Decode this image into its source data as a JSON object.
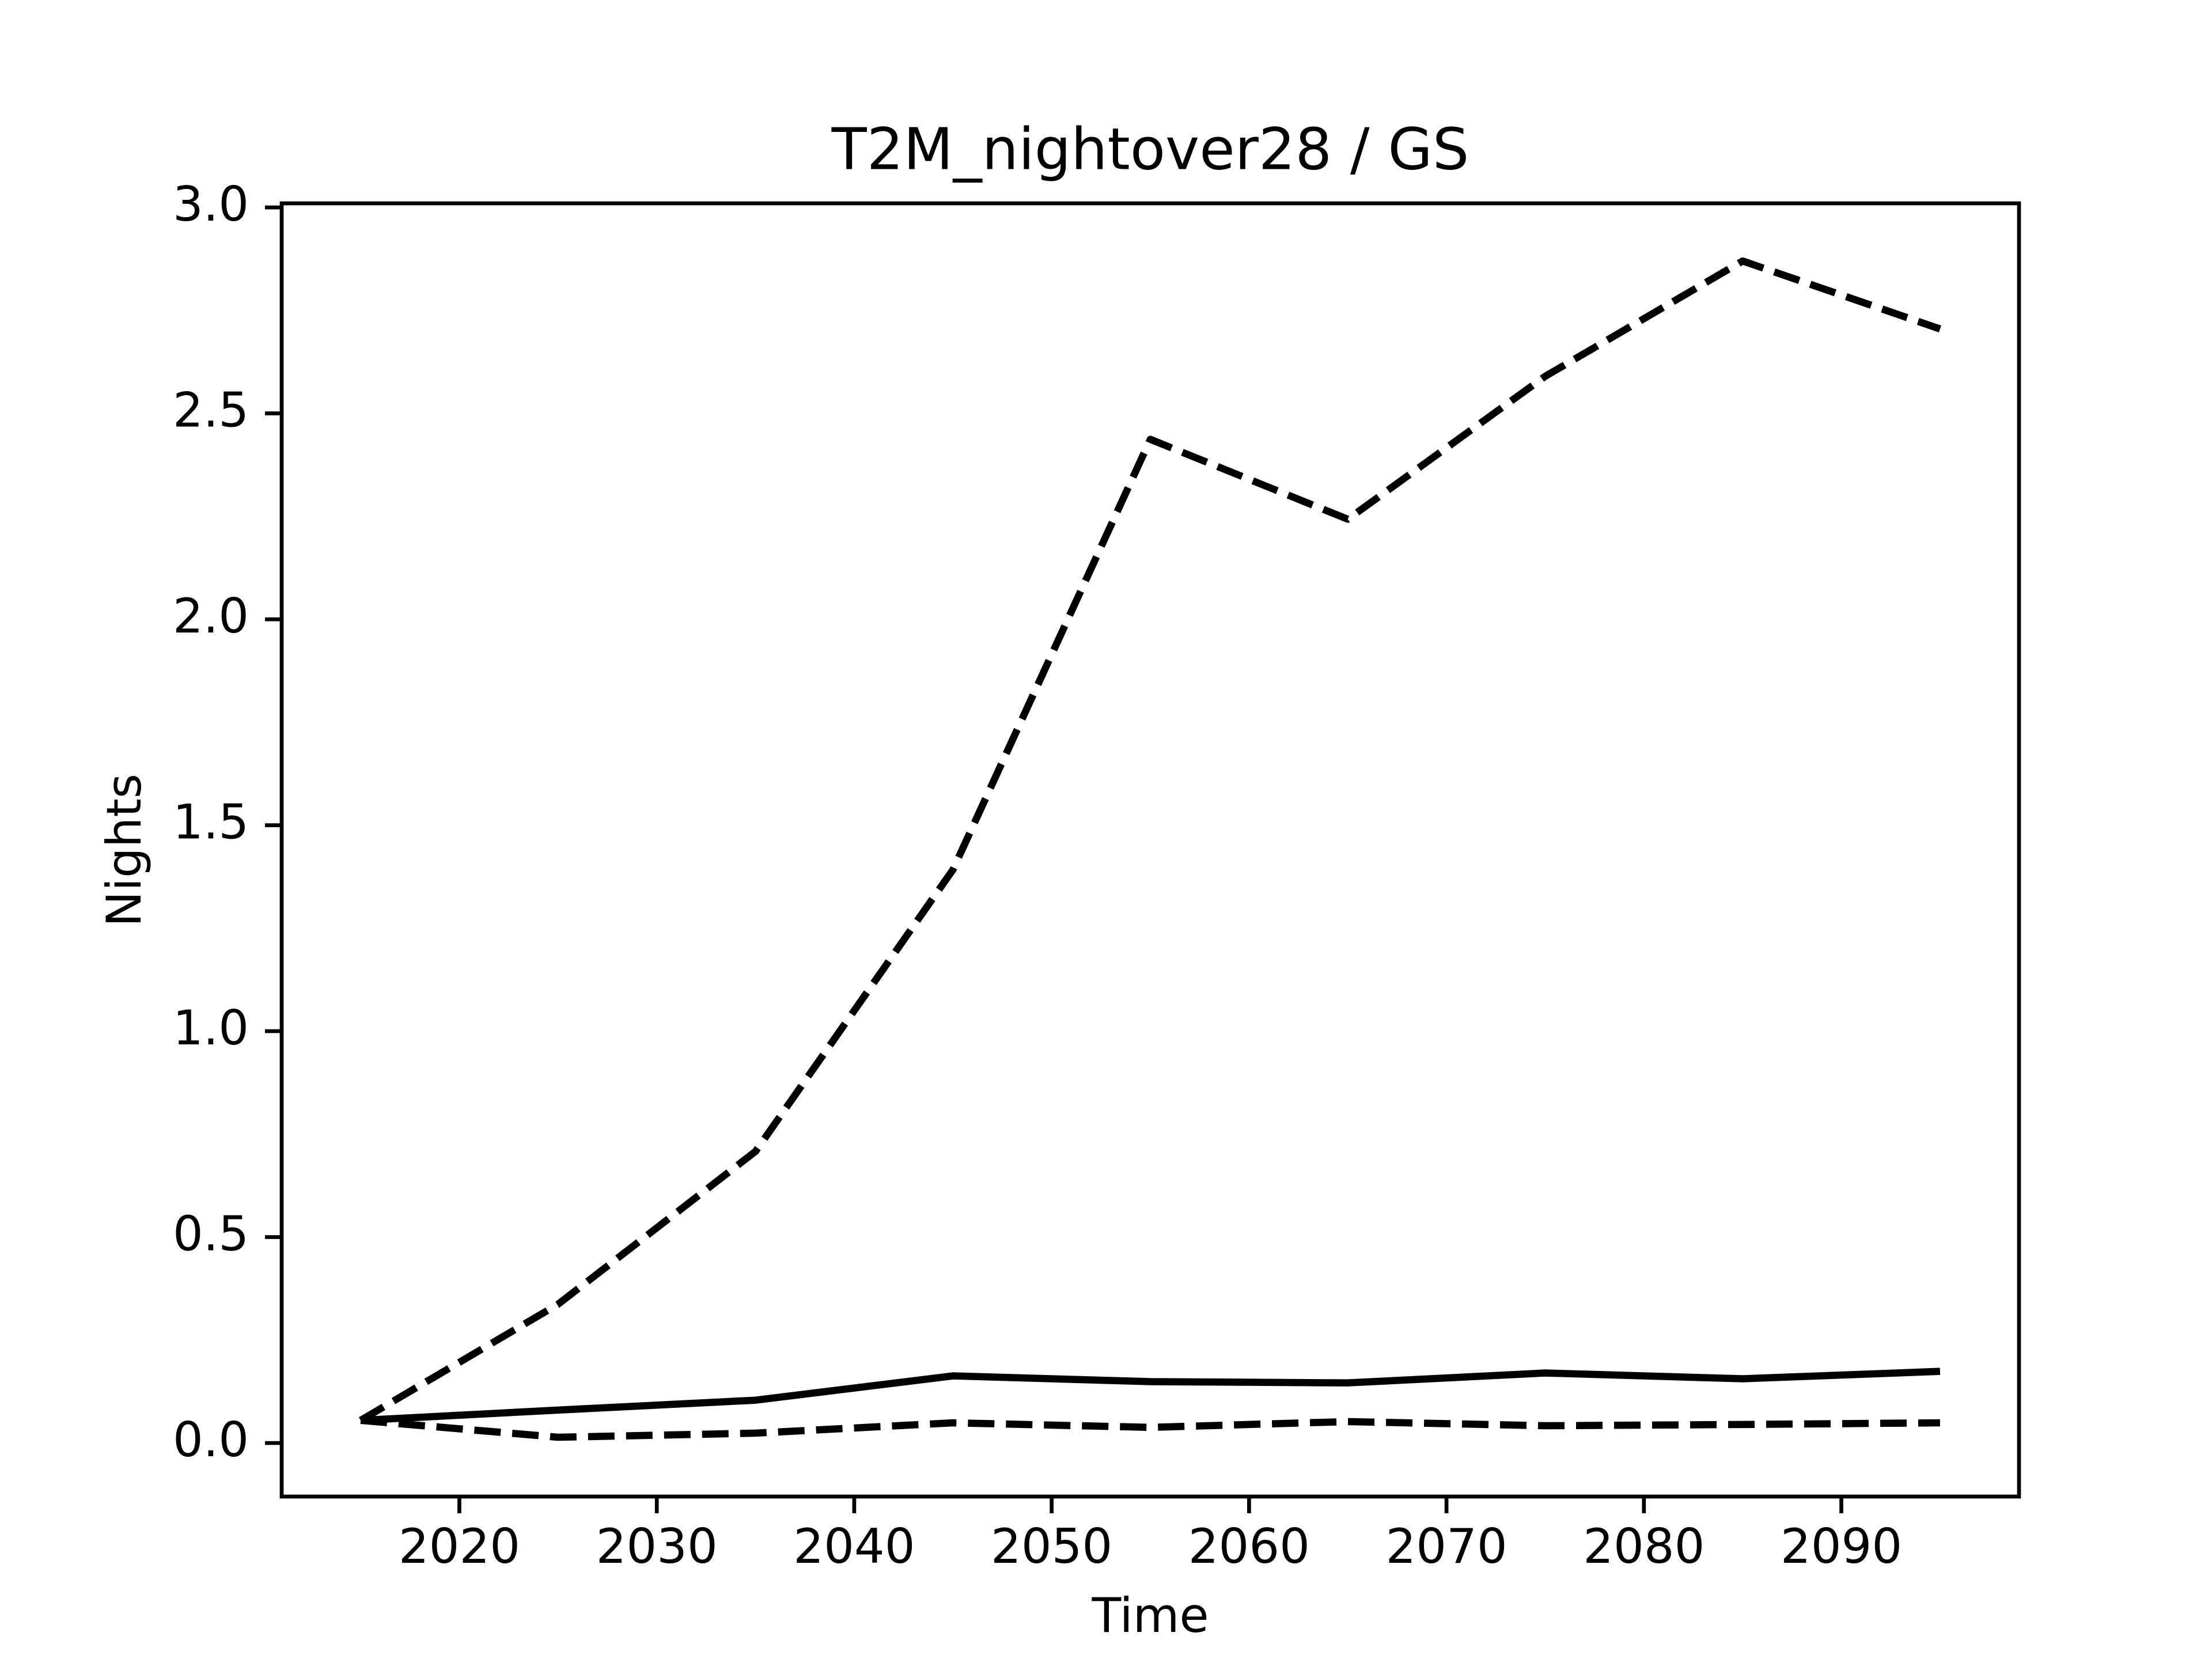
{
  "chart_data": {
    "type": "line",
    "title": "T2M_nightover28 / GS",
    "x_label": "Time",
    "y_label": "Nights",
    "x": [
      2015,
      2025,
      2035,
      2045,
      2055,
      2065,
      2075,
      2085,
      2095
    ],
    "series": [
      {
        "color": "#000000",
        "linestyle": "dashed",
        "values": [
          0.055,
          0.337,
          0.708,
          1.392,
          2.437,
          2.243,
          2.59,
          2.87,
          2.705
        ]
      },
      {
        "color": "#000000",
        "linestyle": "solid",
        "values": [
          0.055,
          0.08,
          0.104,
          0.163,
          0.149,
          0.146,
          0.17,
          0.156,
          0.174
        ]
      },
      {
        "color": "#000000",
        "linestyle": "dashed",
        "values": [
          0.055,
          0.014,
          0.024,
          0.049,
          0.038,
          0.052,
          0.042,
          0.045,
          0.049
        ]
      }
    ],
    "xlim": [
      2011,
      2099
    ],
    "ylim": [
      -0.13,
      3.01
    ],
    "xticks": [
      2020,
      2030,
      2040,
      2050,
      2060,
      2070,
      2080,
      2090
    ],
    "yticks": [
      {
        "value": 0,
        "label": "0.0"
      },
      0.5,
      {
        "value": 1,
        "label": "1.0"
      },
      1.5,
      {
        "value": 2,
        "label": "2.0"
      },
      2.5,
      {
        "value": 3,
        "label": "3.0"
      }
    ],
    "grid": false
  }
}
